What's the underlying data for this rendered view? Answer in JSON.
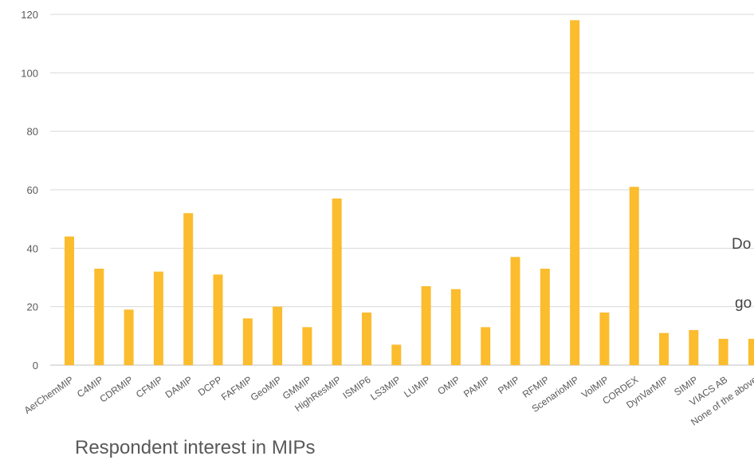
{
  "chart_data": {
    "type": "bar",
    "title": "Respondent interest in MIPs",
    "xlabel": "",
    "ylabel": "",
    "ylim": [
      0,
      120
    ],
    "yticks": [
      0,
      20,
      40,
      60,
      80,
      100,
      120
    ],
    "grid": true,
    "legend": "none",
    "bar_color": "#FBBC2E",
    "categories": [
      "AerChemMIP",
      "C4MIP",
      "CDRMIP",
      "CFMIP",
      "DAMIP",
      "DCPP",
      "FAFMIP",
      "GeoMIP",
      "GMMIP",
      "HighResMIP",
      "ISMIP6",
      "LS3MIP",
      "LUMIP",
      "OMIP",
      "PAMIP",
      "PMIP",
      "RFMIP",
      "ScenarioMIP",
      "VolMIP",
      "CORDEX",
      "DynVarMIP",
      "SIMIP",
      "VIACS AB",
      "None of the above"
    ],
    "values": [
      44,
      33,
      19,
      32,
      52,
      31,
      16,
      20,
      13,
      57,
      18,
      7,
      27,
      26,
      13,
      37,
      33,
      118,
      18,
      61,
      11,
      12,
      9,
      9
    ]
  },
  "overlay_text": [
    "Do",
    "go"
  ]
}
